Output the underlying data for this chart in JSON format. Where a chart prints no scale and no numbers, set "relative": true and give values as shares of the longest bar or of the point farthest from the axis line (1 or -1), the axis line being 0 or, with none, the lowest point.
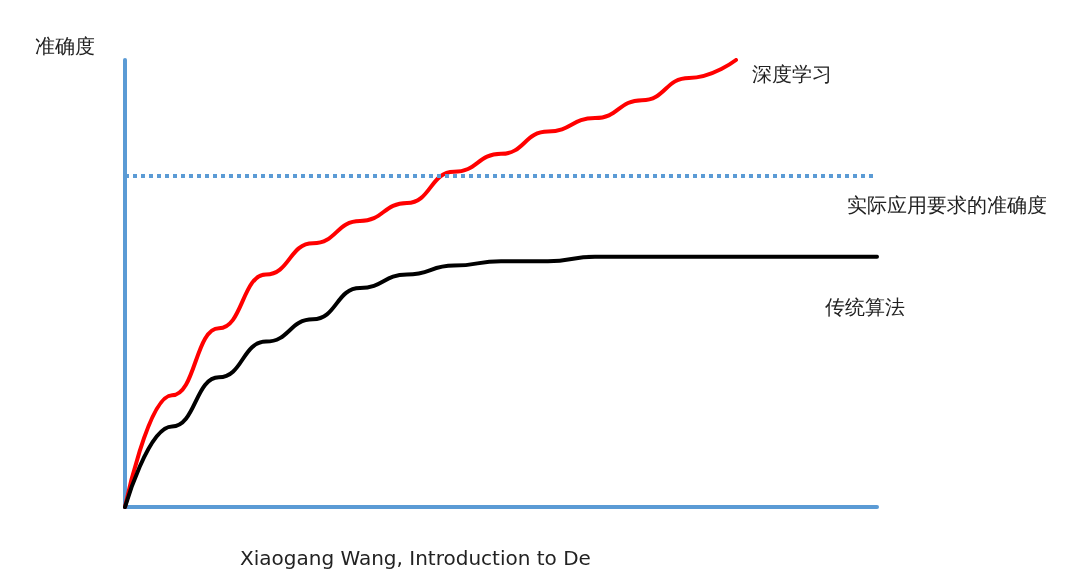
{
  "chart_data": {
    "type": "line",
    "relative": true,
    "ylabel": "准确度",
    "categories": [
      null,
      null,
      null,
      null,
      null,
      null,
      null,
      null,
      null,
      null,
      null,
      null,
      null,
      null,
      null,
      null,
      null
    ],
    "series": [
      {
        "name": "深度学习",
        "color": "#ff0000",
        "values": [
          0,
          0.25,
          0.4,
          0.52,
          0.59,
          0.64,
          0.68,
          0.75,
          0.79,
          0.84,
          0.87,
          0.91,
          0.96,
          1,
          null,
          null,
          null
        ]
      },
      {
        "name": "传统算法",
        "color": "#000000",
        "values": [
          0,
          0.18,
          0.29,
          0.37,
          0.42,
          0.49,
          0.52,
          0.54,
          0.55,
          0.55,
          0.56,
          0.56,
          0.56,
          0.56,
          0.56,
          0.56,
          0.56
        ]
      }
    ],
    "ref_lines": [
      {
        "axis": "y",
        "value": 0.74,
        "label": "实际应用要求的准确度",
        "color": "#5b9bd5",
        "line_style": "dotted"
      }
    ],
    "annotations": [
      "Xiaogang Wang, Introduction to De"
    ],
    "marker": "none",
    "line_style": "solid",
    "grid": false,
    "legend": false
  }
}
